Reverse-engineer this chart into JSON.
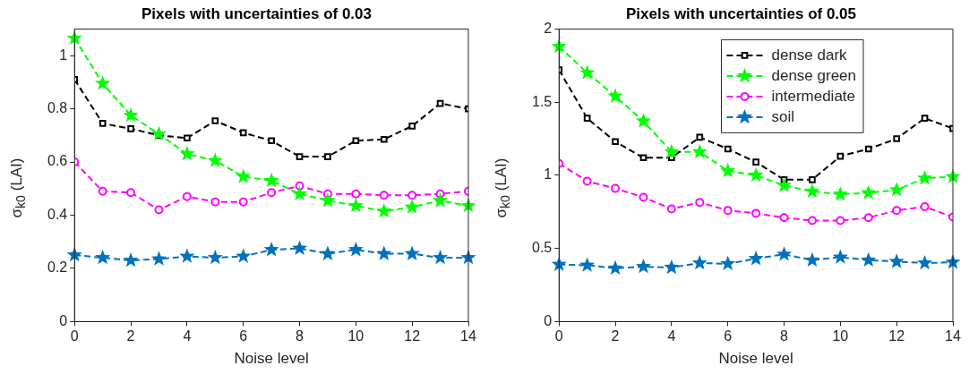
{
  "chart_data": [
    {
      "type": "line",
      "title": "Pixels with uncertainties of 0.03",
      "xlabel": "Noise level",
      "ylabel": "σ$_{k0}$ (LAI)",
      "x": [
        0,
        1,
        2,
        3,
        4,
        5,
        6,
        7,
        8,
        9,
        10,
        11,
        12,
        13,
        14
      ],
      "xlim": [
        0,
        14
      ],
      "xticks": [
        0,
        2,
        4,
        6,
        8,
        10,
        12,
        14
      ],
      "ylim": [
        0,
        1.1
      ],
      "yticks": [
        0,
        0.2,
        0.4,
        0.6,
        0.8,
        1
      ],
      "grid": false,
      "line_style": "dashed",
      "series": [
        {
          "color": "#000000",
          "marker": "square",
          "values": [
            0.91,
            0.745,
            0.725,
            0.7,
            0.69,
            0.755,
            0.71,
            0.68,
            0.62,
            0.62,
            0.68,
            0.685,
            0.735,
            0.82,
            0.8
          ]
        },
        {
          "color": "#00ff00",
          "marker": "star",
          "values": [
            1.065,
            0.895,
            0.775,
            0.705,
            0.63,
            0.605,
            0.545,
            0.53,
            0.48,
            0.455,
            0.435,
            0.415,
            0.43,
            0.455,
            0.435
          ]
        },
        {
          "color": "#ff00ff",
          "marker": "circle",
          "values": [
            0.6,
            0.49,
            0.485,
            0.42,
            0.47,
            0.45,
            0.45,
            0.485,
            0.51,
            0.48,
            0.48,
            0.475,
            0.475,
            0.48,
            0.49
          ]
        },
        {
          "color": "#0072bd",
          "marker": "star",
          "values": [
            0.25,
            0.24,
            0.23,
            0.235,
            0.245,
            0.24,
            0.245,
            0.27,
            0.275,
            0.255,
            0.27,
            0.255,
            0.255,
            0.24,
            0.24
          ]
        }
      ]
    },
    {
      "type": "line",
      "title": "Pixels with uncertainties of 0.05",
      "xlabel": "Noise level",
      "ylabel": "σ$_{k0}$ (LAI)",
      "x": [
        0,
        1,
        2,
        3,
        4,
        5,
        6,
        7,
        8,
        9,
        10,
        11,
        12,
        13,
        14
      ],
      "xlim": [
        0,
        14
      ],
      "xticks": [
        0,
        2,
        4,
        6,
        8,
        10,
        12,
        14
      ],
      "ylim": [
        0,
        2
      ],
      "yticks": [
        0,
        0.5,
        1,
        1.5,
        2
      ],
      "grid": false,
      "line_style": "dashed",
      "legend": "top right",
      "series": [
        {
          "name": "dense dark",
          "color": "#000000",
          "marker": "square",
          "values": [
            1.72,
            1.39,
            1.23,
            1.12,
            1.12,
            1.26,
            1.18,
            1.09,
            0.97,
            0.97,
            1.13,
            1.18,
            1.25,
            1.39,
            1.32
          ]
        },
        {
          "name": "dense green",
          "color": "#00ff00",
          "marker": "star",
          "values": [
            1.88,
            1.7,
            1.54,
            1.37,
            1.16,
            1.16,
            1.03,
            1.0,
            0.93,
            0.89,
            0.87,
            0.88,
            0.9,
            0.98,
            0.99
          ]
        },
        {
          "name": "intermediate",
          "color": "#ff00ff",
          "marker": "circle",
          "values": [
            1.08,
            0.96,
            0.91,
            0.85,
            0.77,
            0.815,
            0.76,
            0.74,
            0.71,
            0.69,
            0.69,
            0.71,
            0.76,
            0.785,
            0.715
          ]
        },
        {
          "name": "soil",
          "color": "#0072bd",
          "marker": "star",
          "values": [
            0.39,
            0.385,
            0.365,
            0.375,
            0.37,
            0.4,
            0.395,
            0.43,
            0.46,
            0.42,
            0.44,
            0.42,
            0.41,
            0.4,
            0.405
          ]
        }
      ]
    }
  ]
}
